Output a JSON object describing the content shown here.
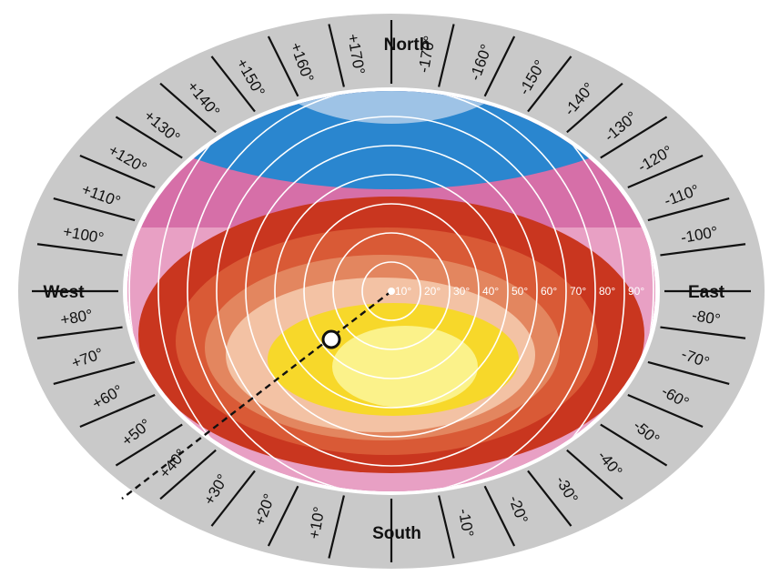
{
  "cardinals": {
    "north": "North",
    "south": "South",
    "east": "East",
    "west": "West"
  },
  "ring_labels": [
    "10°",
    "20°",
    "30°",
    "40°",
    "50°",
    "60°",
    "70°",
    "80°",
    "90°"
  ],
  "azimuth_labels": {
    "east_side": [
      "-10°",
      "-20°",
      "-30°",
      "-40°",
      "-50°",
      "-60°",
      "-70°",
      "-80°",
      "-100°",
      "-110°",
      "-120°",
      "-130°",
      "-140°",
      "-150°",
      "-160°",
      "-170°"
    ],
    "west_side": [
      "+10°",
      "+20°",
      "+30°",
      "+40°",
      "+50°",
      "+60°",
      "+70°",
      "+80°",
      "+100°",
      "+110°",
      "+120°",
      "+130°",
      "+140°",
      "+150°",
      "+160°",
      "+170°"
    ]
  },
  "colors": {
    "outer_ring": "#c9c9c9",
    "light_blue": "#9ec3e6",
    "blue": "#2a86cf",
    "magenta": "#d66fa8",
    "pink": "#e8a0c4",
    "red": "#c9361f",
    "dark_orange": "#d95a36",
    "orange": "#e3865f",
    "peach": "#f3c2a4",
    "yellow": "#f7d82a",
    "light_yellow": "#fbf28a",
    "circle_lines": "#ffffff"
  }
}
